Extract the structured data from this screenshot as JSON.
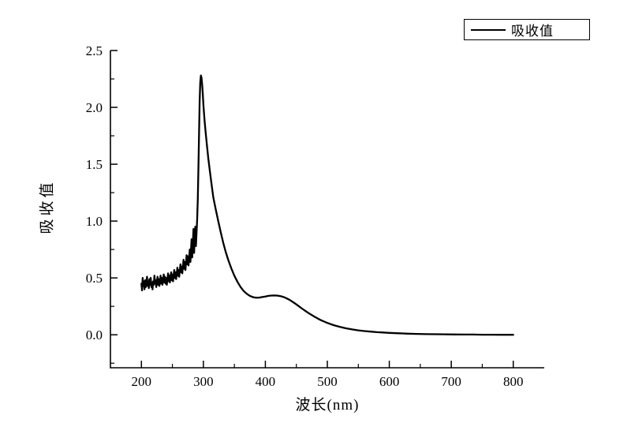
{
  "figure": {
    "background": "#ffffff",
    "line_color": "#000000",
    "axis_color": "#000000"
  },
  "legend": {
    "label": "吸收值"
  },
  "axes": {
    "x_title": "波长(nm)",
    "y_title": "吸收值",
    "x_ticks": [
      200,
      300,
      400,
      500,
      600,
      700,
      800
    ],
    "y_ticks": [
      "0.0",
      "0.5",
      "1.0",
      "1.5",
      "2.0",
      "2.5"
    ]
  },
  "chart_data": {
    "type": "line",
    "title": "",
    "xlabel": "波长(nm)",
    "ylabel": "吸收值",
    "xlim": [
      150,
      850
    ],
    "ylim": [
      -0.29,
      2.5
    ],
    "grid": false,
    "legend_position": "top-right-outside",
    "legend_entries": [
      "吸收值"
    ],
    "series": [
      {
        "name": "吸收值",
        "color": "#000000",
        "points": [
          [
            200,
            0.45
          ],
          [
            201,
            0.39
          ],
          [
            202,
            0.5
          ],
          [
            203,
            0.43
          ],
          [
            204,
            0.47
          ],
          [
            205,
            0.4
          ],
          [
            206,
            0.48
          ],
          [
            207,
            0.42
          ],
          [
            208,
            0.46
          ],
          [
            209,
            0.51
          ],
          [
            210,
            0.43
          ],
          [
            211,
            0.47
          ],
          [
            212,
            0.41
          ],
          [
            213,
            0.49
          ],
          [
            214,
            0.44
          ],
          [
            215,
            0.5
          ],
          [
            216,
            0.42
          ],
          [
            217,
            0.46
          ],
          [
            218,
            0.4
          ],
          [
            219,
            0.47
          ],
          [
            220,
            0.44
          ],
          [
            221,
            0.52
          ],
          [
            222,
            0.45
          ],
          [
            223,
            0.48
          ],
          [
            224,
            0.42
          ],
          [
            225,
            0.47
          ],
          [
            226,
            0.51
          ],
          [
            227,
            0.44
          ],
          [
            228,
            0.49
          ],
          [
            229,
            0.43
          ],
          [
            230,
            0.48
          ],
          [
            231,
            0.52
          ],
          [
            232,
            0.45
          ],
          [
            233,
            0.5
          ],
          [
            234,
            0.44
          ],
          [
            235,
            0.49
          ],
          [
            236,
            0.53
          ],
          [
            237,
            0.46
          ],
          [
            238,
            0.51
          ],
          [
            239,
            0.45
          ],
          [
            240,
            0.5
          ],
          [
            241,
            0.44
          ],
          [
            242,
            0.49
          ],
          [
            243,
            0.54
          ],
          [
            244,
            0.47
          ],
          [
            245,
            0.52
          ],
          [
            246,
            0.46
          ],
          [
            247,
            0.51
          ],
          [
            248,
            0.55
          ],
          [
            249,
            0.48
          ],
          [
            250,
            0.53
          ],
          [
            251,
            0.47
          ],
          [
            252,
            0.52
          ],
          [
            253,
            0.57
          ],
          [
            254,
            0.5
          ],
          [
            255,
            0.55
          ],
          [
            256,
            0.49
          ],
          [
            257,
            0.54
          ],
          [
            258,
            0.59
          ],
          [
            259,
            0.52
          ],
          [
            260,
            0.57
          ],
          [
            261,
            0.51
          ],
          [
            262,
            0.57
          ],
          [
            263,
            0.62
          ],
          [
            264,
            0.55
          ],
          [
            265,
            0.6
          ],
          [
            266,
            0.54
          ],
          [
            267,
            0.6
          ],
          [
            268,
            0.66
          ],
          [
            269,
            0.58
          ],
          [
            270,
            0.64
          ],
          [
            271,
            0.57
          ],
          [
            272,
            0.64
          ],
          [
            273,
            0.7
          ],
          [
            274,
            0.62
          ],
          [
            275,
            0.69
          ],
          [
            276,
            0.61
          ],
          [
            277,
            0.68
          ],
          [
            278,
            0.75
          ],
          [
            279,
            0.64
          ],
          [
            280,
            0.74
          ],
          [
            281,
            0.84
          ],
          [
            282,
            0.68
          ],
          [
            283,
            0.8
          ],
          [
            284,
            0.93
          ],
          [
            285,
            0.72
          ],
          [
            286,
            0.88
          ],
          [
            287,
            0.95
          ],
          [
            288,
            0.78
          ],
          [
            289,
            0.9
          ],
          [
            290,
            1.02
          ],
          [
            291,
            1.2
          ],
          [
            292,
            1.48
          ],
          [
            293,
            1.78
          ],
          [
            294,
            2.05
          ],
          [
            295,
            2.22
          ],
          [
            296,
            2.28
          ],
          [
            297,
            2.26
          ],
          [
            298,
            2.2
          ],
          [
            299,
            2.12
          ],
          [
            300,
            2.02
          ],
          [
            302,
            1.88
          ],
          [
            304,
            1.76
          ],
          [
            306,
            1.65
          ],
          [
            308,
            1.55
          ],
          [
            310,
            1.46
          ],
          [
            313,
            1.33
          ],
          [
            316,
            1.21
          ],
          [
            320,
            1.1
          ],
          [
            324,
            1.0
          ],
          [
            328,
            0.9
          ],
          [
            332,
            0.81
          ],
          [
            336,
            0.73
          ],
          [
            340,
            0.66
          ],
          [
            345,
            0.585
          ],
          [
            350,
            0.52
          ],
          [
            355,
            0.465
          ],
          [
            360,
            0.42
          ],
          [
            365,
            0.385
          ],
          [
            370,
            0.36
          ],
          [
            375,
            0.342
          ],
          [
            380,
            0.331
          ],
          [
            385,
            0.326
          ],
          [
            390,
            0.327
          ],
          [
            395,
            0.332
          ],
          [
            400,
            0.337
          ],
          [
            405,
            0.342
          ],
          [
            410,
            0.345
          ],
          [
            415,
            0.346
          ],
          [
            420,
            0.344
          ],
          [
            425,
            0.339
          ],
          [
            430,
            0.331
          ],
          [
            435,
            0.319
          ],
          [
            440,
            0.304
          ],
          [
            445,
            0.286
          ],
          [
            450,
            0.267
          ],
          [
            455,
            0.247
          ],
          [
            460,
            0.227
          ],
          [
            465,
            0.208
          ],
          [
            470,
            0.19
          ],
          [
            475,
            0.173
          ],
          [
            480,
            0.157
          ],
          [
            485,
            0.142
          ],
          [
            490,
            0.128
          ],
          [
            495,
            0.116
          ],
          [
            500,
            0.104
          ],
          [
            510,
            0.085
          ],
          [
            520,
            0.07
          ],
          [
            530,
            0.057
          ],
          [
            540,
            0.047
          ],
          [
            550,
            0.039
          ],
          [
            560,
            0.033
          ],
          [
            570,
            0.028
          ],
          [
            580,
            0.023
          ],
          [
            590,
            0.02
          ],
          [
            600,
            0.017
          ],
          [
            615,
            0.013
          ],
          [
            630,
            0.01
          ],
          [
            645,
            0.008
          ],
          [
            660,
            0.006
          ],
          [
            675,
            0.005
          ],
          [
            690,
            0.004
          ],
          [
            705,
            0.003
          ],
          [
            720,
            0.002
          ],
          [
            735,
            0.002
          ],
          [
            750,
            0.001
          ],
          [
            765,
            0.001
          ],
          [
            780,
            0.0
          ],
          [
            800,
            0.0
          ]
        ]
      }
    ]
  }
}
